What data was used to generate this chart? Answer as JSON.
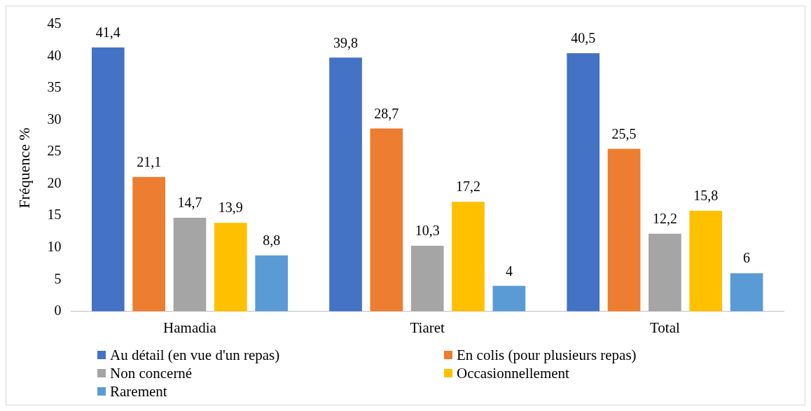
{
  "chart_data": {
    "type": "bar",
    "ylabel": "Fréquence %",
    "categories": [
      "Hamadia",
      "Tiaret",
      "Total"
    ],
    "series": [
      {
        "name": "Au détail (en vue d'un repas)",
        "color": "#4472c4",
        "values": [
          41.4,
          39.8,
          40.5
        ],
        "value_labels": [
          "41,4",
          "39,8",
          "40,5"
        ]
      },
      {
        "name": "En colis (pour plusieurs repas)",
        "color": "#ed7d31",
        "values": [
          21.1,
          28.7,
          25.5
        ],
        "value_labels": [
          "21,1",
          "28,7",
          "25,5"
        ]
      },
      {
        "name": "Non concerné",
        "color": "#a5a5a5",
        "values": [
          14.7,
          10.3,
          12.2
        ],
        "value_labels": [
          "14,7",
          "10,3",
          "12,2"
        ]
      },
      {
        "name": "Occasionnellement",
        "color": "#ffc000",
        "values": [
          13.9,
          17.2,
          15.8
        ],
        "value_labels": [
          "13,9",
          "17,2",
          "15,8"
        ]
      },
      {
        "name": "Rarement",
        "color": "#5b9bd5",
        "values": [
          8.8,
          4,
          6
        ],
        "value_labels": [
          "8,8",
          "4",
          "6"
        ]
      }
    ],
    "ylim": [
      0,
      45
    ],
    "yticks": [
      0,
      5,
      10,
      15,
      20,
      25,
      30,
      35,
      40,
      45
    ],
    "grid": false,
    "legend": "bottom"
  }
}
